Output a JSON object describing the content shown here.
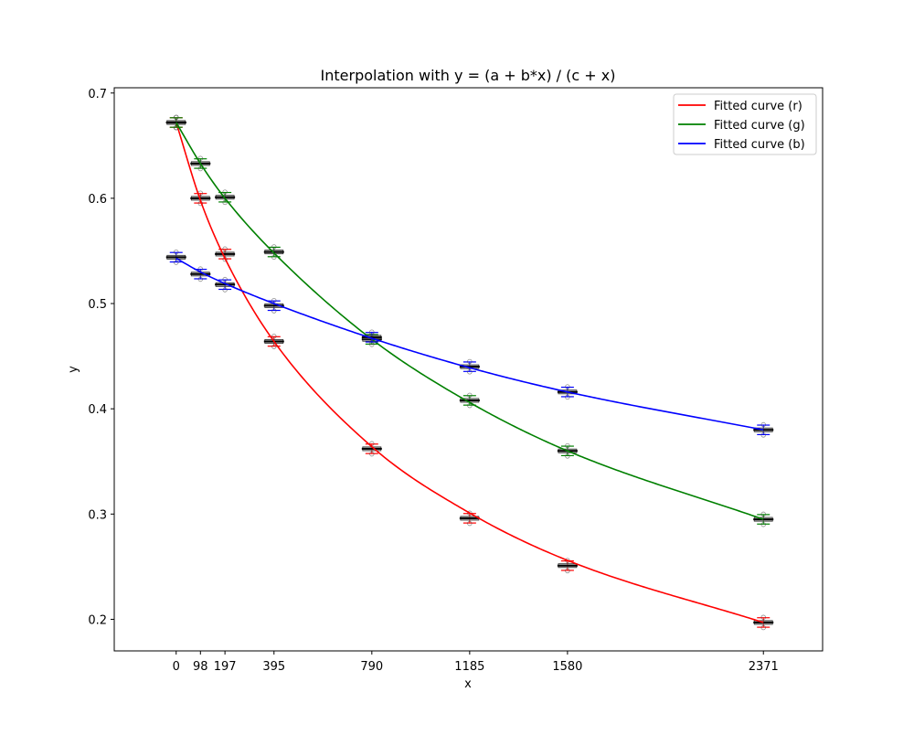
{
  "chart_data": {
    "type": "line",
    "title": "Interpolation with y = (a + b*x) / (c + x)",
    "xlabel": "x",
    "ylabel": "y",
    "xlim": [
      -250,
      2610
    ],
    "ylim": [
      0.17,
      0.705
    ],
    "x_ticks": [
      0,
      98,
      197,
      395,
      790,
      1185,
      1580,
      2371
    ],
    "y_ticks": [
      0.2,
      0.3,
      0.4,
      0.5,
      0.6,
      0.7
    ],
    "y_tick_labels": [
      "0.2",
      "0.3",
      "0.4",
      "0.5",
      "0.6",
      "0.7"
    ],
    "grid": false,
    "legend_position": "top-right",
    "series": [
      {
        "name": "Fitted curve (r)",
        "color": "#ff0000",
        "x": [
          0,
          98,
          197,
          395,
          790,
          1185,
          1580,
          2371
        ],
        "medians": [
          0.672,
          0.6,
          0.547,
          0.464,
          0.362,
          0.296,
          0.251,
          0.197
        ],
        "curve": [
          0.672,
          0.598,
          0.543,
          0.464,
          0.364,
          0.301,
          0.256,
          0.197
        ]
      },
      {
        "name": "Fitted curve (g)",
        "color": "#008000",
        "x": [
          0,
          98,
          197,
          395,
          790,
          1185,
          1580,
          2371
        ],
        "medians": [
          0.672,
          0.633,
          0.601,
          0.549,
          0.466,
          0.408,
          0.36,
          0.295
        ],
        "curve": [
          0.672,
          0.633,
          0.6,
          0.548,
          0.466,
          0.406,
          0.36,
          0.295
        ]
      },
      {
        "name": "Fitted curve (b)",
        "color": "#0000ff",
        "x": [
          0,
          98,
          197,
          395,
          790,
          1185,
          1580,
          2371
        ],
        "medians": [
          0.544,
          0.528,
          0.518,
          0.498,
          0.468,
          0.44,
          0.416,
          0.38
        ],
        "curve": [
          0.543,
          0.53,
          0.519,
          0.5,
          0.467,
          0.439,
          0.416,
          0.38
        ]
      }
    ]
  }
}
